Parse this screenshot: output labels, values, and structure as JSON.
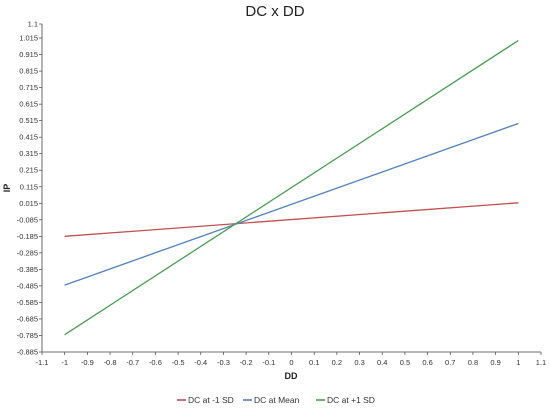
{
  "chart_data": {
    "type": "line",
    "title": "DC x DD",
    "xlabel": "DD",
    "ylabel": "IP",
    "xlim": [
      -1.1,
      1.1
    ],
    "ylim": [
      -0.885,
      1.1
    ],
    "x_ticks": [
      "-1.1",
      "-1",
      "-0.9",
      "-0.8",
      "-0.7",
      "-0.6",
      "-0.5",
      "-0.4",
      "-0.3",
      "-0.2",
      "-0.1",
      "0",
      "0.1",
      "0.2",
      "0.3",
      "0.4",
      "0.5",
      "0.6",
      "0.7",
      "0.8",
      "0.9",
      "1",
      "1.1"
    ],
    "y_ticks": [
      "1.1",
      "1.015",
      "0.915",
      "0.815",
      "0.715",
      "0.615",
      "0.515",
      "0.415",
      "0.315",
      "0.215",
      "0.115",
      "0.015",
      "-0.085",
      "-0.185",
      "-0.285",
      "-0.385",
      "-0.485",
      "-0.585",
      "-0.685",
      "-0.785",
      "-0.885"
    ],
    "grid": false,
    "legend_position": "bottom",
    "series": [
      {
        "name": "DC at -1 SD",
        "color": "#c0504d",
        "x": [
          -1,
          1
        ],
        "y": [
          -0.185,
          0.018
        ]
      },
      {
        "name": "DC at Mean",
        "color": "#4f81bd",
        "x": [
          -1,
          1
        ],
        "y": [
          -0.48,
          0.498
        ]
      },
      {
        "name": "DC at +1 SD",
        "color": "#4a9b52",
        "x": [
          -1,
          1
        ],
        "y": [
          -0.78,
          1.0
        ]
      }
    ]
  }
}
